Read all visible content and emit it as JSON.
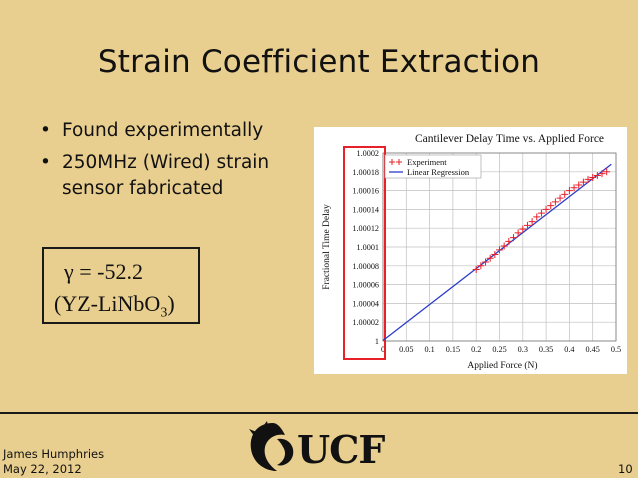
{
  "slide": {
    "title": "Strain Coefficient Extraction",
    "bullets": [
      "Found experimentally",
      "250MHz (Wired) strain sensor fabricated"
    ],
    "bullet_glyph": "•",
    "gamma": {
      "line1": "γ = -52.2",
      "material_prefix": "(YZ-LiNbO",
      "material_sub": "3",
      "material_suffix": ")"
    },
    "footer": {
      "author": "James Humphries",
      "date": "May 22, 2012",
      "page": "10"
    },
    "logo": {
      "text": "UCF",
      "icon": "pegasus-logo-icon"
    },
    "colors": {
      "background": "#e9cf8f",
      "highlight_box": "#e8202a",
      "experiment": "#e8202a",
      "regression": "#2b3cc9"
    }
  },
  "chart_data": {
    "type": "scatter",
    "title": "Cantilever Delay Time vs. Applied Force",
    "xlabel": "Applied Force (N)",
    "ylabel": "Fractional Time Delay",
    "xlim": [
      0,
      0.5
    ],
    "ylim": [
      1.0,
      1.0002
    ],
    "x_ticks": [
      "0",
      "0.05",
      "0.1",
      "0.15",
      "0.2",
      "0.25",
      "0.3",
      "0.35",
      "0.4",
      "0.45",
      "0.5"
    ],
    "y_ticks": [
      "1",
      "1.00002",
      "1.00004",
      "1.00006",
      "1.00008",
      "1.0001",
      "1.00012",
      "1.00014",
      "1.00016",
      "1.00018",
      "1.0002"
    ],
    "grid": true,
    "legend_position": "top-left",
    "series": [
      {
        "name": "Experiment",
        "marker": "+",
        "x": [
          0.2,
          0.21,
          0.22,
          0.23,
          0.24,
          0.25,
          0.26,
          0.27,
          0.28,
          0.29,
          0.3,
          0.31,
          0.32,
          0.33,
          0.34,
          0.35,
          0.36,
          0.37,
          0.38,
          0.39,
          0.4,
          0.41,
          0.42,
          0.43,
          0.44,
          0.45,
          0.46,
          0.47,
          0.48
        ],
        "y": [
          1.000076,
          1.00008,
          1.000084,
          1.000088,
          1.000092,
          1.000097,
          1.000101,
          1.000106,
          1.00011,
          1.000115,
          1.000119,
          1.000123,
          1.000127,
          1.000132,
          1.000136,
          1.00014,
          1.000144,
          1.000148,
          1.000152,
          1.000156,
          1.00016,
          1.000163,
          1.000166,
          1.000169,
          1.000172,
          1.000174,
          1.000176,
          1.000178,
          1.00018
        ]
      },
      {
        "name": "Linear Regression",
        "line": true,
        "x": [
          0,
          0.49
        ],
        "y": [
          1.0000005,
          1.000188
        ]
      }
    ]
  }
}
